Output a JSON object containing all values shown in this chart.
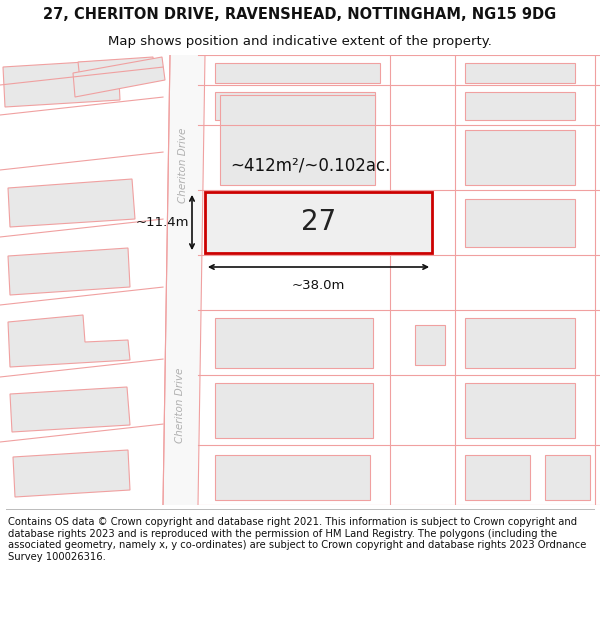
{
  "title_line1": "27, CHERITON DRIVE, RAVENSHEAD, NOTTINGHAM, NG15 9DG",
  "title_line2": "Map shows position and indicative extent of the property.",
  "copyright_text": "Contains OS data © Crown copyright and database right 2021. This information is subject to Crown copyright and database rights 2023 and is reproduced with the permission of HM Land Registry. The polygons (including the associated geometry, namely x, y co-ordinates) are subject to Crown copyright and database rights 2023 Ordnance Survey 100026316.",
  "area_label": "~412m²/~0.102ac.",
  "width_label": "~38.0m",
  "height_label": "~11.4m",
  "property_number": "27",
  "road_label": "Cheriton Drive",
  "bg_color": "#ffffff",
  "map_bg": "#ffffff",
  "building_fill": "#e8e8e8",
  "building_edge_color": "#f0a0a0",
  "road_line_color": "#f0a0a0",
  "highlight_color": "#cc0000",
  "dim_color": "#111111",
  "road_text_color": "#c0c0c0",
  "title_fontsize": 10.5,
  "subtitle_fontsize": 9.5,
  "copyright_fontsize": 7.2
}
